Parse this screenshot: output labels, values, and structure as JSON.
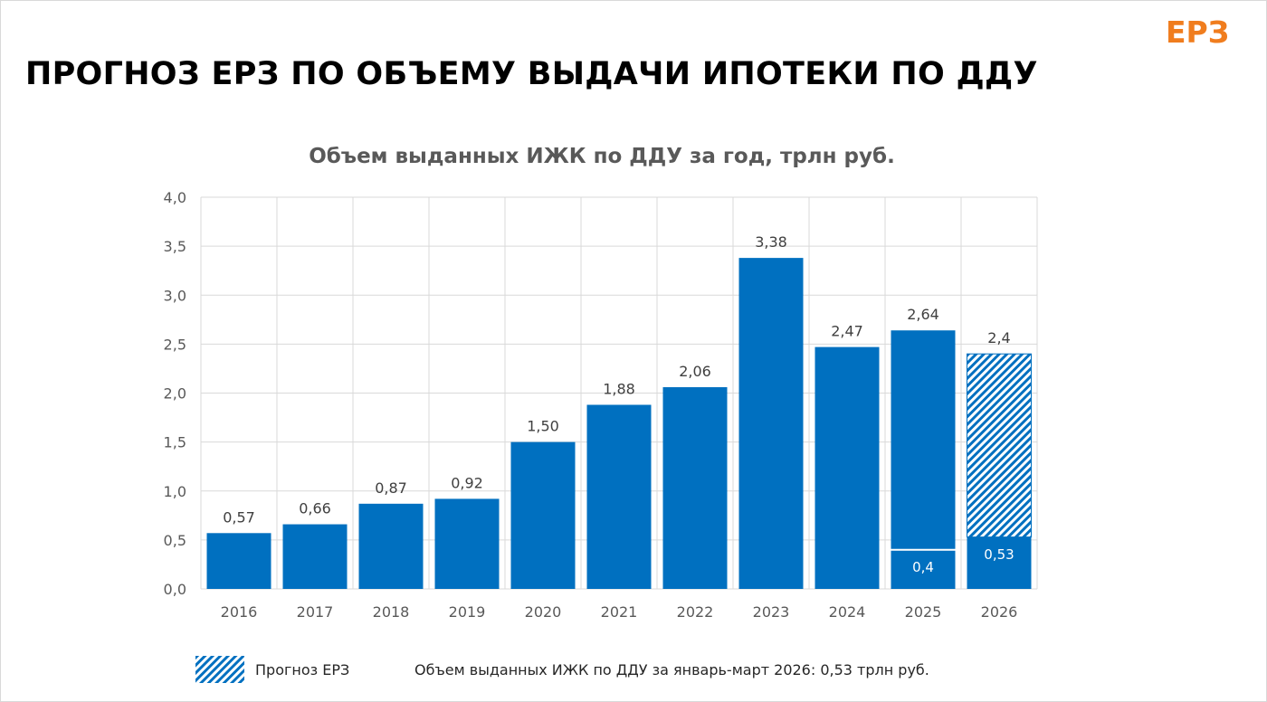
{
  "brand": {
    "logo_text": "ЕРЗ",
    "logo_color": "#F07D1E"
  },
  "page_title": "ПРОГНОЗ ЕРЗ ПО ОБЪЕМУ ВЫДАЧИ ИПОТЕКИ ПО ДДУ",
  "colors": {
    "bar": "#0070C0",
    "grid": "#d9d9d9",
    "axis_text": "#595959"
  },
  "chart_data": {
    "type": "bar",
    "title": "Объем выданных ИЖК по ДДУ за год, трлн руб.",
    "categories": [
      "2016",
      "2017",
      "2018",
      "2019",
      "2020",
      "2021",
      "2022",
      "2023",
      "2024",
      "2025",
      "2026"
    ],
    "values": [
      0.57,
      0.66,
      0.87,
      0.92,
      1.5,
      1.88,
      2.06,
      3.38,
      2.47,
      2.64,
      2.4
    ],
    "value_labels": [
      "0,57",
      "0,66",
      "0,87",
      "0,92",
      "1,50",
      "1,88",
      "2,06",
      "3,38",
      "2,47",
      "2,64",
      "2,4"
    ],
    "forecast": [
      false,
      false,
      false,
      false,
      false,
      false,
      false,
      false,
      false,
      false,
      true
    ],
    "inner_values": [
      {
        "category": "2025",
        "value": 0.4,
        "label": "0,4"
      },
      {
        "category": "2026",
        "value": 0.53,
        "label": "0,53"
      }
    ],
    "ylim": [
      0,
      4.0
    ],
    "yticks": [
      0,
      0.5,
      1.0,
      1.5,
      2.0,
      2.5,
      3.0,
      3.5,
      4.0
    ],
    "ytick_labels": [
      "0,0",
      "0,5",
      "1,0",
      "1,5",
      "2,0",
      "2,5",
      "3,0",
      "3,5",
      "4,0"
    ],
    "grid": true,
    "legend": {
      "position": "bottom-left",
      "entries": [
        {
          "name": "Прогноз ЕРЗ",
          "pattern": "hatched"
        }
      ]
    }
  },
  "footnote": "Объем выданных ИЖК по ДДУ за январь-март 2026: 0,53 трлн руб."
}
